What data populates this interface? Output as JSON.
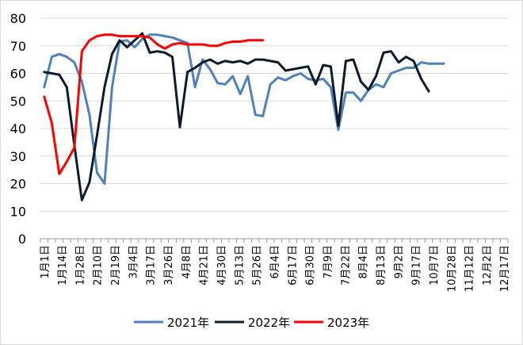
{
  "chart_data": {
    "type": "line",
    "title": "",
    "xlabel": "",
    "ylabel": "",
    "ylim": [
      0,
      80
    ],
    "yticks": [
      0,
      10,
      20,
      30,
      40,
      50,
      60,
      70,
      80
    ],
    "grid": "horizontal",
    "legend_position": "bottom",
    "x_tick_labels": [
      "1月1日",
      "1月14日",
      "1月28日",
      "2月10日",
      "2月19日",
      "3月4日",
      "3月17日",
      "3月26日",
      "4月8日",
      "4月21日",
      "4月30日",
      "5月13日",
      "5月26日",
      "6月4日",
      "6月17日",
      "6月30日",
      "7月9日",
      "7月22日",
      "8月4日",
      "8月13日",
      "9月2日",
      "9月17日",
      "10月7日",
      "10月28日",
      "11月12日",
      "12月2日",
      "12月17日"
    ],
    "series": [
      {
        "name": "2021年",
        "color": "#4f81bd",
        "values": [
          55,
          66,
          67,
          66,
          64,
          57,
          45,
          24,
          20,
          55,
          71.5,
          72,
          69.5,
          72.5,
          74,
          74,
          73.5,
          73,
          72,
          71,
          55,
          65,
          61.5,
          56.5,
          56,
          59,
          52.5,
          59,
          45,
          44.5,
          56,
          58.5,
          57.5,
          59,
          60,
          58,
          57.5,
          58,
          55,
          39.5,
          53,
          53,
          50,
          54,
          56,
          55,
          60,
          61,
          62,
          62,
          64,
          63.5,
          63.5,
          63.5
        ]
      },
      {
        "name": "2022年",
        "color": "#0d1b2a",
        "values": [
          60.5,
          60,
          59.5,
          55,
          34,
          14,
          20.5,
          37.5,
          55,
          67,
          72,
          69.5,
          72,
          74.5,
          67.5,
          68,
          67.5,
          66,
          40.5,
          60.5,
          62,
          64,
          65,
          63.5,
          64.5,
          64,
          64.5,
          63.5,
          65,
          65,
          64.5,
          64,
          61,
          61.5,
          62,
          62.5,
          56,
          63,
          62.5,
          41,
          64.5,
          65,
          57,
          54,
          59,
          67.5,
          68,
          64,
          66,
          64.5,
          58,
          53.5
        ]
      },
      {
        "name": "2023年",
        "color": "#ff0000",
        "values": [
          51.5,
          42,
          23.5,
          28,
          33,
          68,
          72,
          73.5,
          74,
          74,
          73.5,
          73.5,
          73.5,
          73.5,
          73,
          70.5,
          69,
          70.5,
          71,
          70.5,
          70.5,
          70.5,
          70,
          70,
          71,
          71.5,
          71.5,
          72,
          72,
          72
        ]
      }
    ]
  }
}
